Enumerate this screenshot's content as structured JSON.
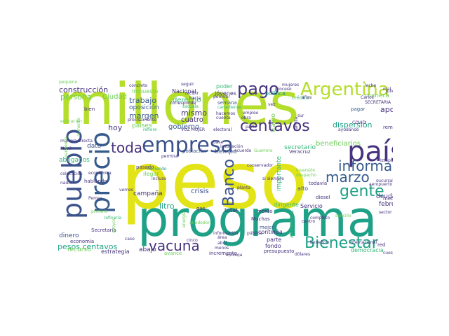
{
  "palette": {
    "purple": "#46327e",
    "indigo": "#3b528b",
    "blue": "#365c8d",
    "teal": "#277f8e",
    "cyan": "#1fa187",
    "green": "#35b779",
    "lime": "#6ece58",
    "yellowgreen": "#b5de2b",
    "yellow": "#e2e418"
  },
  "words": [
    {
      "text": "millones",
      "color": "yellowgreen"
    },
    {
      "text": "peso",
      "color": "yellow"
    },
    {
      "text": "programa",
      "color": "cyan"
    },
    {
      "text": "país",
      "color": "purple"
    },
    {
      "text": "empresa",
      "color": "indigo"
    },
    {
      "text": "pueblo",
      "color": "indigo"
    },
    {
      "text": "precio",
      "color": "blue"
    },
    {
      "text": "Argentina",
      "color": "yellowgreen"
    },
    {
      "text": "pago",
      "color": "purple"
    },
    {
      "text": "centavos",
      "color": "purple"
    },
    {
      "text": "toda",
      "color": "purple"
    },
    {
      "text": "Banco",
      "color": "indigo"
    },
    {
      "text": "gente",
      "color": "cyan"
    },
    {
      "text": "informar",
      "color": "blue"
    },
    {
      "text": "marzo",
      "color": "blue"
    },
    {
      "text": "Bienestar",
      "color": "cyan"
    },
    {
      "text": "vacuna",
      "color": "purple"
    },
    {
      "text": "construcción",
      "color": "purple"
    },
    {
      "text": "persona",
      "color": "lime"
    },
    {
      "text": "Ciudad",
      "color": "lime"
    },
    {
      "text": "trabajo",
      "color": "blue"
    },
    {
      "text": "oposición",
      "color": "blue"
    },
    {
      "text": "margen",
      "color": "blue"
    },
    {
      "text": "mismo",
      "color": "purple"
    },
    {
      "text": "derecho",
      "color": "green"
    },
    {
      "text": "gobierno",
      "color": "blue"
    },
    {
      "text": "cuatro",
      "color": "purple"
    },
    {
      "text": "hoy",
      "color": "purple"
    },
    {
      "text": "dato",
      "color": "indigo"
    },
    {
      "text": "apoyo",
      "color": "purple"
    },
    {
      "text": "dispersión",
      "color": "cyan"
    },
    {
      "text": "beneficiarios",
      "color": "lime"
    },
    {
      "text": "secretario",
      "color": "green"
    },
    {
      "text": "febrero",
      "color": "purple"
    },
    {
      "text": "deuda",
      "color": "purple"
    },
    {
      "text": "política",
      "color": "cyan"
    },
    {
      "text": "Nacional",
      "color": "purple"
    },
    {
      "text": "impuesto",
      "color": "lime"
    },
    {
      "text": "jóvenes",
      "color": "purple"
    },
    {
      "text": "crédito",
      "color": "green"
    },
    {
      "text": "pagar",
      "color": "blue"
    },
    {
      "text": "semana",
      "color": "indigo"
    },
    {
      "text": "países",
      "color": "lime"
    },
    {
      "text": "manera",
      "color": "lime"
    },
    {
      "text": "crisis",
      "color": "indigo"
    },
    {
      "text": "campaña",
      "color": "purple"
    },
    {
      "text": "litro",
      "color": "cyan"
    },
    {
      "text": "pesos centavos",
      "color": "cyan"
    },
    {
      "text": "economía",
      "color": "purple"
    },
    {
      "text": "recurso",
      "color": "lime"
    },
    {
      "text": "estrategia",
      "color": "purple"
    },
    {
      "text": "abajo",
      "color": "purple"
    },
    {
      "text": "avance",
      "color": "lime"
    },
    {
      "text": "incremento",
      "color": "purple"
    },
    {
      "text": "dinero",
      "color": "indigo"
    },
    {
      "text": "Secretaría",
      "color": "purple"
    },
    {
      "text": "total",
      "color": "purple"
    },
    {
      "text": "gas",
      "color": "purple"
    },
    {
      "text": "alrededor",
      "color": "lime"
    },
    {
      "text": "presupuesto",
      "color": "purple"
    },
    {
      "text": "continúa",
      "color": "purple"
    },
    {
      "text": "mejor",
      "color": "indigo"
    },
    {
      "text": "Servicio",
      "color": "purple"
    },
    {
      "text": "dirigente",
      "color": "green"
    },
    {
      "text": "alto",
      "color": "indigo"
    },
    {
      "text": "diesel",
      "color": "purple"
    },
    {
      "text": "todavía",
      "color": "purple"
    },
    {
      "text": "importante",
      "color": "green"
    },
    {
      "text": "alimentos",
      "color": "green"
    },
    {
      "text": "parte",
      "color": "purple"
    },
    {
      "text": "fondo",
      "color": "purple"
    },
    {
      "text": "tramo",
      "color": "lime"
    },
    {
      "text": "democracia",
      "color": "green"
    },
    {
      "text": "abogados",
      "color": "green"
    },
    {
      "text": "Veracruz",
      "color": "purple"
    },
    {
      "text": "tiempo",
      "color": "indigo"
    },
    {
      "text": "población",
      "color": "indigo"
    },
    {
      "text": "hablando",
      "color": "purple"
    },
    {
      "text": "pasado",
      "color": "purple"
    },
    {
      "text": "Muchas",
      "color": "purple"
    },
    {
      "text": "monto",
      "color": "purple"
    },
    {
      "text": "red",
      "color": "purple"
    },
    {
      "text": "medio",
      "color": "purple"
    },
    {
      "text": "poder",
      "color": "green"
    },
    {
      "text": "educación",
      "color": "lime"
    },
    {
      "text": "remesas",
      "color": "purple"
    },
    {
      "text": "manera directa",
      "color": "purple"
    },
    {
      "text": "corresponde",
      "color": "purple"
    },
    {
      "text": "concreto",
      "color": "purple"
    },
    {
      "text": "hacemos",
      "color": "purple"
    },
    {
      "text": "bien",
      "color": "purple"
    },
    {
      "text": "vez",
      "color": "purple"
    },
    {
      "text": "años",
      "color": "purple"
    },
    {
      "text": "cuenta",
      "color": "purple"
    },
    {
      "text": "empleo",
      "color": "purple"
    },
    {
      "text": "llegar",
      "color": "lime"
    },
    {
      "text": "sucursales",
      "color": "purple"
    },
    {
      "text": "aeropuerto",
      "color": "purple"
    },
    {
      "text": "planta",
      "color": "purple"
    },
    {
      "text": "área",
      "color": "purple"
    },
    {
      "text": "sector",
      "color": "purple"
    },
    {
      "text": "inversión",
      "color": "lime"
    },
    {
      "text": "despacho",
      "color": "lime"
    },
    {
      "text": "beneficio",
      "color": "purple"
    },
    {
      "text": "completo",
      "color": "purple"
    },
    {
      "text": "cuestión",
      "color": "purple"
    },
    {
      "text": "permiso",
      "color": "purple"
    },
    {
      "text": "seguir",
      "color": "purple"
    },
    {
      "text": "leche",
      "color": "purple"
    },
    {
      "text": "Carlos",
      "color": "purple"
    },
    {
      "text": "SECRETARIA",
      "color": "purple"
    },
    {
      "text": "COVID",
      "color": "purple"
    },
    {
      "text": "Iztapalapa",
      "color": "purple"
    },
    {
      "text": "Julio",
      "color": "purple"
    },
    {
      "text": "mujeres",
      "color": "purple"
    },
    {
      "text": "proceso",
      "color": "purple"
    },
    {
      "text": "recibir",
      "color": "purple"
    },
    {
      "text": "hacia",
      "color": "purple"
    },
    {
      "text": "permitir",
      "color": "purple"
    },
    {
      "text": "electoral",
      "color": "purple"
    },
    {
      "text": "VOZ MUJER",
      "color": "purple"
    },
    {
      "text": "refiere",
      "color": "green"
    },
    {
      "text": "precisamente",
      "color": "purple"
    },
    {
      "text": "escuela",
      "color": "green"
    },
    {
      "text": "canadiense",
      "color": "green"
    },
    {
      "text": "obra",
      "color": "purple"
    },
    {
      "text": "partir",
      "color": "purple"
    },
    {
      "text": "sur",
      "color": "purple"
    },
    {
      "text": "familia",
      "color": "purple"
    },
    {
      "text": "ayudando",
      "color": "purple"
    },
    {
      "text": "base",
      "color": "purple"
    },
    {
      "text": "instalación",
      "color": "purple"
    },
    {
      "text": "acuerdo",
      "color": "purple"
    },
    {
      "text": "Guerrero",
      "color": "lime"
    },
    {
      "text": "conservador",
      "color": "purple"
    },
    {
      "text": "si siempre",
      "color": "purple"
    },
    {
      "text": "haciendo",
      "color": "cyan"
    },
    {
      "text": "colocación",
      "color": "purple"
    },
    {
      "text": "nadie",
      "color": "purple"
    },
    {
      "text": "Pemex",
      "color": "purple"
    },
    {
      "text": "vemos",
      "color": "purple"
    },
    {
      "text": "primero",
      "color": "lime"
    },
    {
      "text": "refinería",
      "color": "green"
    },
    {
      "text": "caso",
      "color": "purple"
    },
    {
      "text": "cinco",
      "color": "purple"
    },
    {
      "text": "abril",
      "color": "purple"
    },
    {
      "text": "menos",
      "color": "purple"
    },
    {
      "text": "entrega",
      "color": "purple"
    },
    {
      "text": "información",
      "color": "purple"
    },
    {
      "text": "cuanto",
      "color": "purple"
    },
    {
      "text": "pública",
      "color": "purple"
    },
    {
      "text": "internacional",
      "color": "purple"
    },
    {
      "text": "dólares",
      "color": "purple"
    },
    {
      "text": "incluso",
      "color": "purple"
    },
    {
      "text": "apoyos",
      "color": "lime"
    },
    {
      "text": "energía",
      "color": "lime"
    },
    {
      "text": "económica",
      "color": "purple"
    },
    {
      "text": "Móvil",
      "color": "purple"
    },
    {
      "text": "pequeño",
      "color": "lime"
    },
    {
      "text": "centro",
      "color": "purple"
    },
    {
      "text": "pandemia",
      "color": "lime"
    },
    {
      "text": "aumento",
      "color": "lime"
    },
    {
      "text": "sencillo",
      "color": "lime"
    },
    {
      "text": "mal",
      "color": "purple"
    }
  ]
}
